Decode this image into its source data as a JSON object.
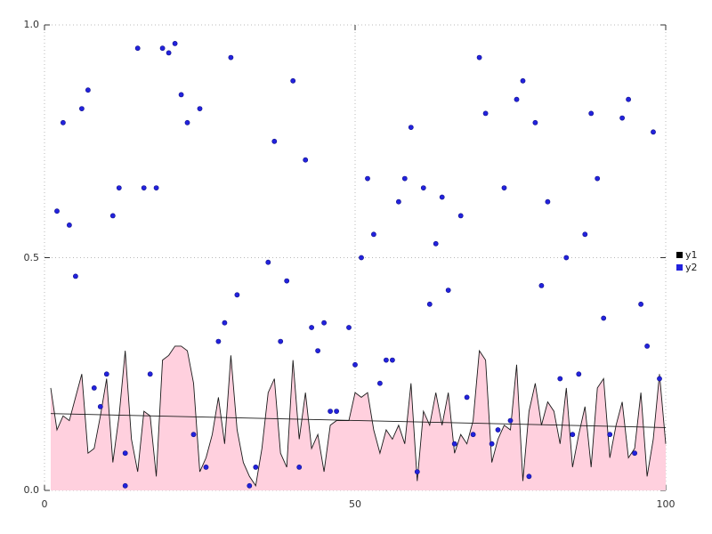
{
  "figure": {
    "background": "#ffffff"
  },
  "chart_data": {
    "type": "mixed",
    "title": "",
    "xlabel": "",
    "ylabel": "",
    "xlim": [
      0,
      100
    ],
    "ylim": [
      0,
      1
    ],
    "x_ticks": [
      0,
      50,
      100
    ],
    "x_tick_labels": [
      "0",
      "50",
      "100"
    ],
    "y_ticks": [
      0,
      0.5,
      1
    ],
    "y_tick_labels": [
      "0.0",
      "0.5",
      "1.0"
    ],
    "grid": "dotted-border",
    "legend": {
      "position": "right-middle",
      "items": [
        {
          "label": "y1",
          "color": "#000000"
        },
        {
          "label": "y2",
          "color": "#2222dd"
        }
      ]
    },
    "series": [
      {
        "name": "y1",
        "type": "area",
        "line_color": "#1a1a1a",
        "fill_color": "#ffd0de",
        "x_start": 1,
        "x_step": 1,
        "values": [
          0.22,
          0.13,
          0.16,
          0.15,
          0.2,
          0.25,
          0.08,
          0.09,
          0.16,
          0.24,
          0.06,
          0.16,
          0.3,
          0.11,
          0.04,
          0.17,
          0.16,
          0.03,
          0.28,
          0.29,
          0.31,
          0.31,
          0.3,
          0.23,
          0.04,
          0.07,
          0.12,
          0.2,
          0.1,
          0.29,
          0.13,
          0.06,
          0.03,
          0.01,
          0.09,
          0.21,
          0.24,
          0.08,
          0.05,
          0.28,
          0.11,
          0.21,
          0.09,
          0.12,
          0.04,
          0.14,
          0.15,
          0.15,
          0.15,
          0.21,
          0.2,
          0.21,
          0.13,
          0.08,
          0.13,
          0.11,
          0.14,
          0.1,
          0.23,
          0.02,
          0.17,
          0.14,
          0.21,
          0.14,
          0.21,
          0.08,
          0.12,
          0.1,
          0.15,
          0.3,
          0.28,
          0.06,
          0.11,
          0.14,
          0.13,
          0.27,
          0.02,
          0.17,
          0.23,
          0.14,
          0.19,
          0.17,
          0.1,
          0.22,
          0.05,
          0.12,
          0.18,
          0.05,
          0.22,
          0.24,
          0.07,
          0.14,
          0.19,
          0.07,
          0.09,
          0.21,
          0.03,
          0.11,
          0.25,
          0.1
        ]
      },
      {
        "name": "y1-trend",
        "type": "line",
        "line_color": "#1a1a1a",
        "x": [
          1,
          100
        ],
        "values": [
          0.165,
          0.135
        ]
      },
      {
        "name": "y2",
        "type": "scatter",
        "point_color": "#2222dd",
        "points": [
          [
            2,
            0.6
          ],
          [
            3,
            0.79
          ],
          [
            4,
            0.57
          ],
          [
            5,
            0.46
          ],
          [
            6,
            0.82
          ],
          [
            7,
            0.86
          ],
          [
            8,
            0.22
          ],
          [
            9,
            0.18
          ],
          [
            10,
            0.25
          ],
          [
            11,
            0.59
          ],
          [
            12,
            0.65
          ],
          [
            13,
            0.01
          ],
          [
            13,
            0.08
          ],
          [
            15,
            0.95
          ],
          [
            16,
            0.65
          ],
          [
            17,
            0.25
          ],
          [
            18,
            0.65
          ],
          [
            19,
            0.95
          ],
          [
            20,
            0.94
          ],
          [
            21,
            0.96
          ],
          [
            22,
            0.85
          ],
          [
            23,
            0.79
          ],
          [
            24,
            0.12
          ],
          [
            25,
            0.82
          ],
          [
            26,
            0.05
          ],
          [
            28,
            0.32
          ],
          [
            29,
            0.36
          ],
          [
            30,
            0.93
          ],
          [
            31,
            0.42
          ],
          [
            33,
            0.01
          ],
          [
            34,
            0.05
          ],
          [
            36,
            0.49
          ],
          [
            37,
            0.75
          ],
          [
            38,
            0.32
          ],
          [
            39,
            0.45
          ],
          [
            40,
            0.88
          ],
          [
            41,
            0.05
          ],
          [
            42,
            0.71
          ],
          [
            43,
            0.35
          ],
          [
            44,
            0.3
          ],
          [
            45,
            0.36
          ],
          [
            46,
            0.17
          ],
          [
            47,
            0.17
          ],
          [
            49,
            0.35
          ],
          [
            50,
            0.27
          ],
          [
            51,
            0.5
          ],
          [
            52,
            0.67
          ],
          [
            53,
            0.55
          ],
          [
            54,
            0.23
          ],
          [
            55,
            0.28
          ],
          [
            56,
            0.28
          ],
          [
            57,
            0.62
          ],
          [
            58,
            0.67
          ],
          [
            59,
            0.78
          ],
          [
            60,
            0.04
          ],
          [
            61,
            0.65
          ],
          [
            62,
            0.4
          ],
          [
            63,
            0.53
          ],
          [
            64,
            0.63
          ],
          [
            65,
            0.43
          ],
          [
            66,
            0.1
          ],
          [
            67,
            0.59
          ],
          [
            68,
            0.2
          ],
          [
            69,
            0.12
          ],
          [
            70,
            0.93
          ],
          [
            71,
            0.81
          ],
          [
            72,
            0.1
          ],
          [
            73,
            0.13
          ],
          [
            74,
            0.65
          ],
          [
            75,
            0.15
          ],
          [
            76,
            0.84
          ],
          [
            77,
            0.88
          ],
          [
            78,
            0.03
          ],
          [
            79,
            0.79
          ],
          [
            80,
            0.44
          ],
          [
            81,
            0.62
          ],
          [
            83,
            0.24
          ],
          [
            84,
            0.5
          ],
          [
            85,
            0.12
          ],
          [
            86,
            0.25
          ],
          [
            87,
            0.55
          ],
          [
            88,
            0.81
          ],
          [
            89,
            0.67
          ],
          [
            90,
            0.37
          ],
          [
            91,
            0.12
          ],
          [
            93,
            0.8
          ],
          [
            94,
            0.84
          ],
          [
            95,
            0.08
          ],
          [
            96,
            0.4
          ],
          [
            97,
            0.31
          ],
          [
            98,
            0.77
          ],
          [
            99,
            0.24
          ]
        ]
      }
    ]
  }
}
